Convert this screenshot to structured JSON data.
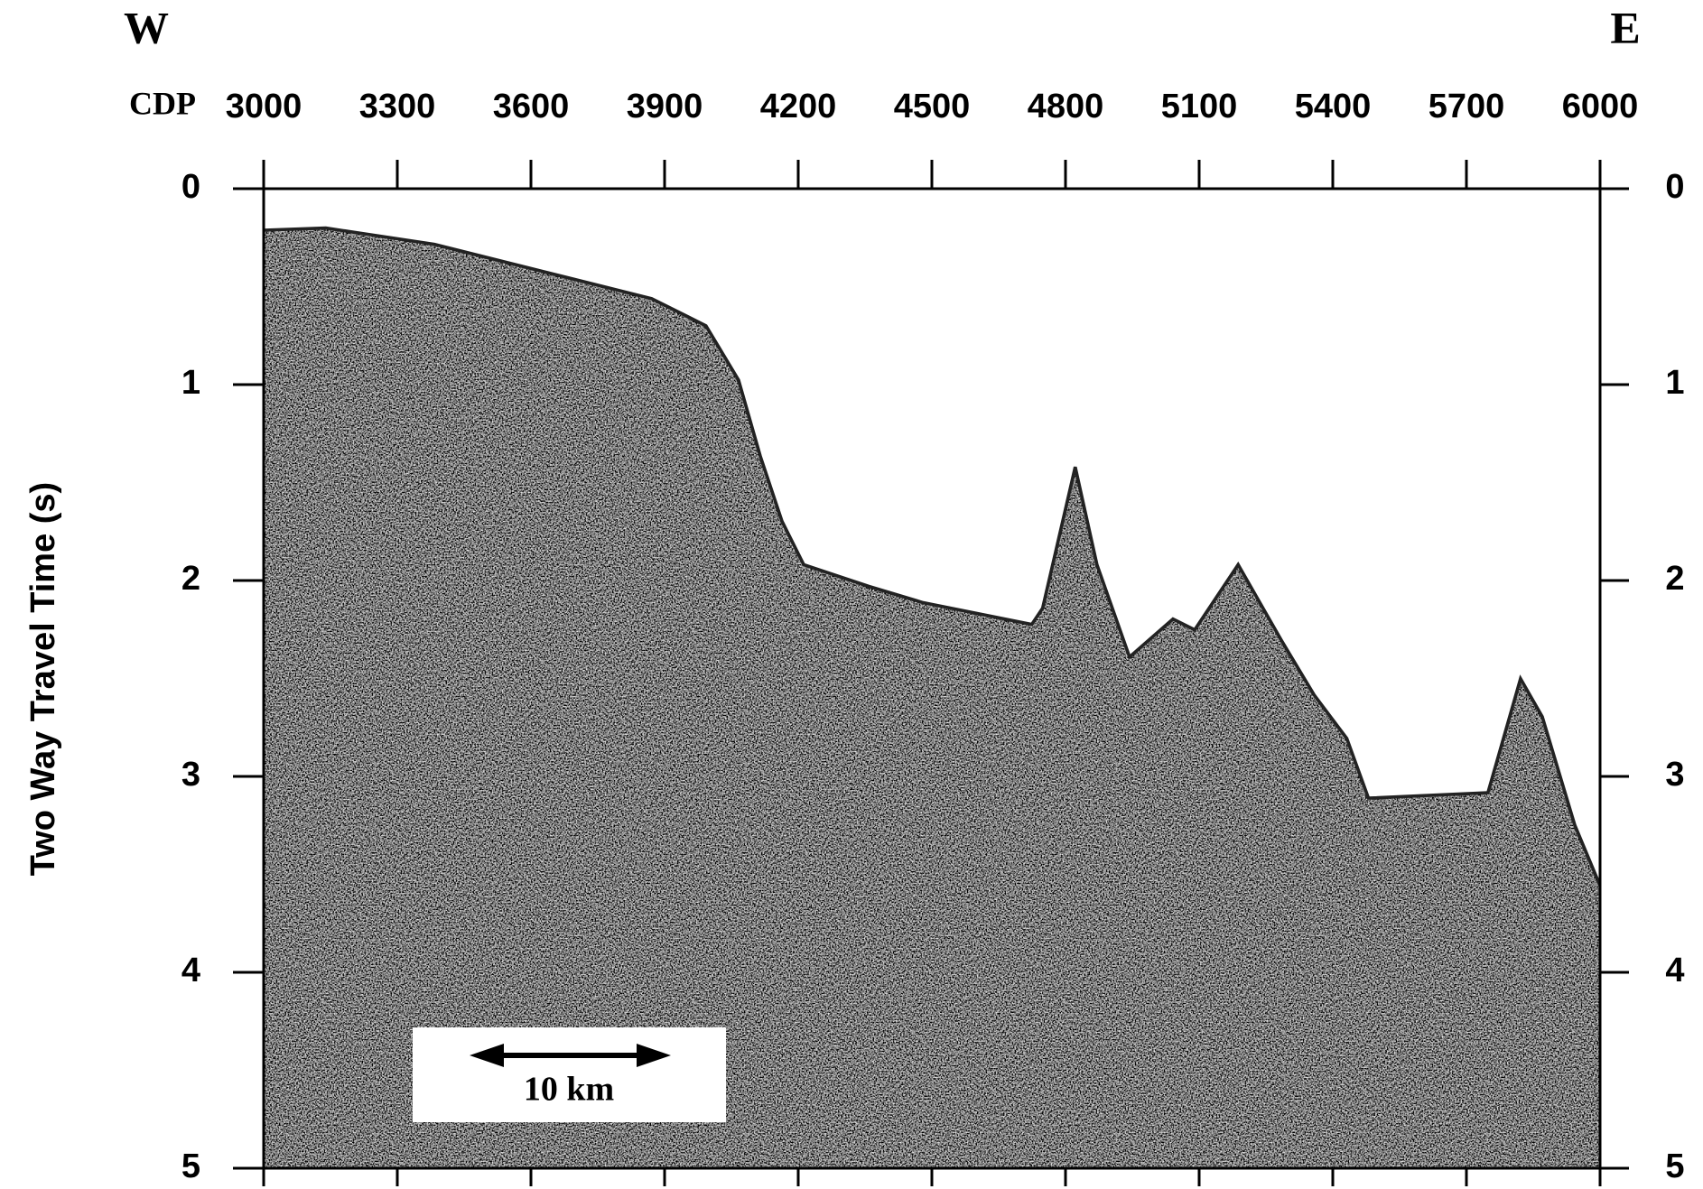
{
  "chart_data": {
    "type": "seismic",
    "left_label": "W",
    "right_label": "E",
    "xlabel": "CDP",
    "ylabel": "Two Way Travel Time (s)",
    "xlim": [
      3000,
      6000
    ],
    "xticks": [
      3000,
      3300,
      3600,
      3900,
      4200,
      4500,
      4800,
      5100,
      5400,
      5700,
      6000
    ],
    "ylim": [
      0,
      5
    ],
    "yticks": [
      0,
      1,
      2,
      3,
      4,
      5
    ],
    "y_inverted": true,
    "scale_bar_label": "10 km"
  }
}
